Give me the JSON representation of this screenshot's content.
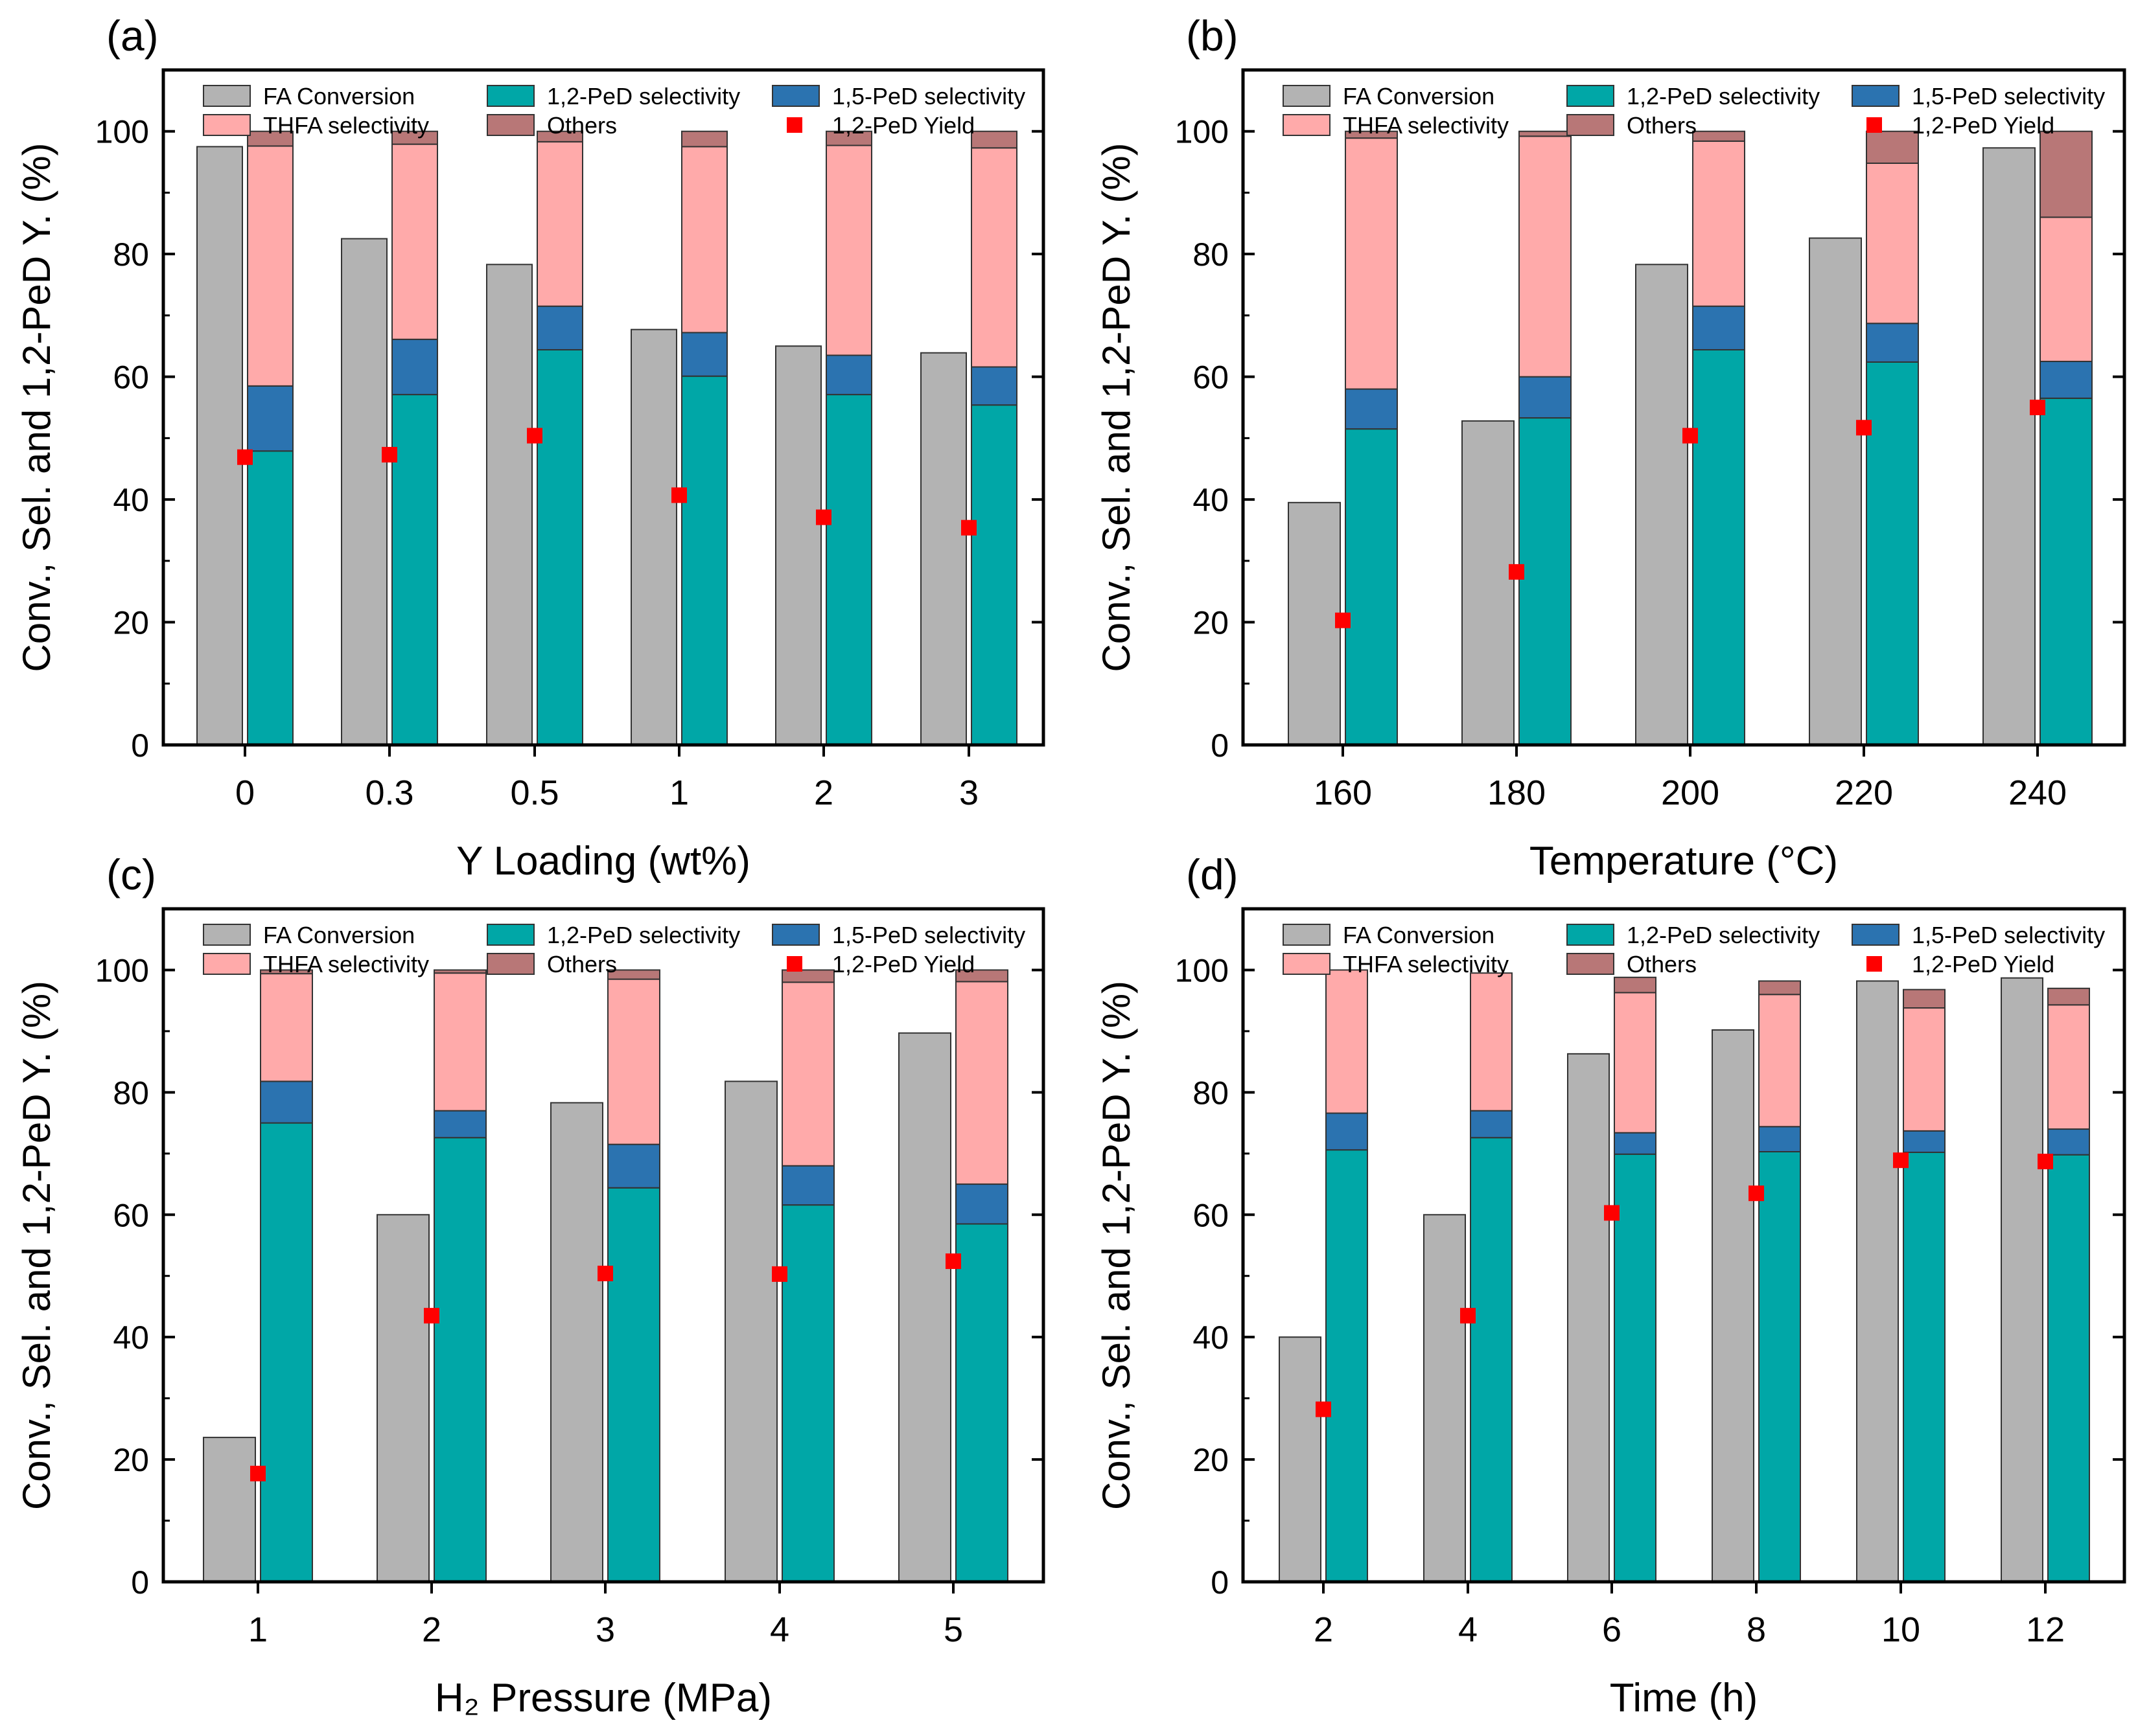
{
  "colors": {
    "conversion": "#b3b3b3",
    "pe12": "#00a7a7",
    "pe15": "#2b73b0",
    "thfa": "#ffaaaa",
    "others": "#b87777",
    "yield": "#ff0000"
  },
  "legend": {
    "conversion": "FA Conversion",
    "pe12": "1,2-PeD selectivity",
    "pe15": "1,5-PeD selectivity",
    "thfa": "THFA selectivity",
    "others": "Others",
    "yield": "1,2-PeD Yield"
  },
  "chart_data": [
    {
      "type": "bar",
      "panel": "(a)",
      "xlabel": "Y Loading (wt%)",
      "ylabel": "Conv., Sel. and 1,2-PeD Y. (%)",
      "ylim": [
        0,
        110
      ],
      "yticks": [
        0,
        20,
        40,
        60,
        80,
        100
      ],
      "categories": [
        "0",
        "0.3",
        "0.5",
        "1",
        "2",
        "3"
      ],
      "conversion": [
        97.5,
        82.5,
        78.3,
        67.7,
        65.0,
        63.9
      ],
      "stack": {
        "pe12": [
          47.9,
          57.1,
          64.4,
          60.1,
          57.1,
          55.4
        ],
        "pe15": [
          10.6,
          9.0,
          7.1,
          7.1,
          6.4,
          6.2
        ],
        "thfa": [
          39.1,
          31.8,
          26.8,
          30.3,
          34.2,
          35.7
        ],
        "others": [
          2.4,
          2.1,
          1.7,
          2.5,
          2.3,
          2.7
        ]
      },
      "yield": [
        46.9,
        47.3,
        50.4,
        40.7,
        37.1,
        35.4
      ]
    },
    {
      "type": "bar",
      "panel": "(b)",
      "xlabel": "Temperature (°C)",
      "ylabel": "Conv., Sel. and 1,2-PeD Y. (%)",
      "ylim": [
        0,
        110
      ],
      "yticks": [
        0,
        20,
        40,
        60,
        80,
        100
      ],
      "categories": [
        "160",
        "180",
        "200",
        "220",
        "240"
      ],
      "conversion": [
        39.5,
        52.8,
        78.3,
        82.6,
        97.3
      ],
      "stack": {
        "pe12": [
          51.5,
          53.3,
          64.4,
          62.4,
          56.5
        ],
        "pe15": [
          6.5,
          6.7,
          7.1,
          6.3,
          6.0
        ],
        "thfa": [
          40.9,
          39.2,
          26.9,
          26.1,
          23.5
        ],
        "others": [
          1.1,
          0.8,
          1.6,
          5.2,
          14.0
        ]
      },
      "yield": [
        20.3,
        28.2,
        50.4,
        51.7,
        55.0
      ]
    },
    {
      "type": "bar",
      "panel": "(c)",
      "xlabel": "H₂ Pressure (MPa)",
      "ylabel": "Conv., Sel. and 1,2-PeD Y. (%)",
      "ylim": [
        0,
        110
      ],
      "yticks": [
        0,
        20,
        40,
        60,
        80,
        100
      ],
      "categories": [
        "1",
        "2",
        "3",
        "4",
        "5"
      ],
      "conversion": [
        23.6,
        60.0,
        78.3,
        81.8,
        89.7
      ],
      "stack": {
        "pe12": [
          75.0,
          72.6,
          64.4,
          61.6,
          58.5
        ],
        "pe15": [
          6.8,
          4.4,
          7.1,
          6.4,
          6.5
        ],
        "thfa": [
          17.6,
          22.5,
          27.0,
          30.0,
          33.1
        ],
        "others": [
          0.6,
          0.5,
          1.5,
          2.0,
          1.9
        ]
      },
      "yield": [
        17.7,
        43.5,
        50.4,
        50.3,
        52.4
      ]
    },
    {
      "type": "bar",
      "panel": "(d)",
      "xlabel": "Time (h)",
      "ylabel": "Conv., Sel. and 1,2-PeD Y. (%)",
      "ylim": [
        0,
        110
      ],
      "yticks": [
        0,
        20,
        40,
        60,
        80,
        100
      ],
      "categories": [
        "2",
        "4",
        "6",
        "8",
        "10",
        "12"
      ],
      "conversion": [
        40.0,
        60.0,
        86.3,
        90.2,
        98.2,
        98.7
      ],
      "stack": {
        "pe12": [
          70.6,
          72.6,
          69.9,
          70.3,
          70.2,
          69.8
        ],
        "pe15": [
          6.0,
          4.4,
          3.5,
          4.1,
          3.5,
          4.2
        ],
        "thfa": [
          23.4,
          22.5,
          22.9,
          21.6,
          20.1,
          20.3
        ],
        "others": [
          0.0,
          0.0,
          2.5,
          2.2,
          3.0,
          2.7
        ]
      },
      "yield": [
        28.2,
        43.5,
        60.3,
        63.5,
        68.9,
        68.7
      ]
    }
  ]
}
